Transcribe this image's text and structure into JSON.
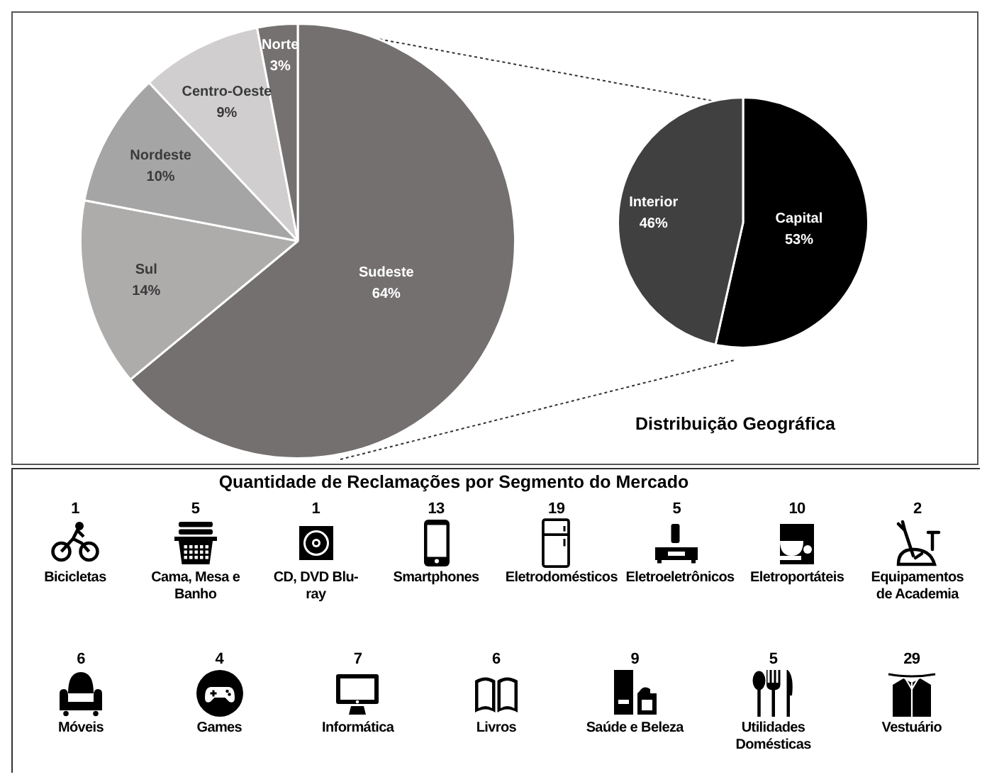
{
  "chart_data": [
    {
      "type": "pie",
      "categories": [
        "Sudeste",
        "Sul",
        "Nordeste",
        "Centro-Oeste",
        "Norte"
      ],
      "values": [
        64,
        14,
        10,
        9,
        3
      ],
      "colors": [
        "#747070",
        "#aeabab",
        "#a5a5a5",
        "#d0cece",
        "#767171"
      ],
      "value_labels": [
        "64%",
        "14%",
        "10%",
        "9%",
        "3%"
      ]
    },
    {
      "type": "pie",
      "title": "Distribuição Geográfica",
      "categories": [
        "Capital",
        "Interior"
      ],
      "values": [
        53,
        46
      ],
      "colors": [
        "#000000",
        "#404040"
      ],
      "value_labels": [
        "53%",
        "46%"
      ]
    },
    {
      "type": "other",
      "title": "Quantidade de Reclamações por Segmento do Mercado",
      "categories": [
        "Bicicletas",
        "Cama, Mesa e Banho",
        "CD, DVD Blu-ray",
        "Smartphones",
        "Eletrodomésticos",
        "Eletroeletrônicos",
        "Eletroportáteis",
        "Equipamentos de Academia",
        "Móveis",
        "Games",
        "Informática",
        "Livros",
        "Saúde e Beleza",
        "Utilidades Domésticas",
        "Vestuário"
      ],
      "values": [
        1,
        5,
        1,
        13,
        19,
        5,
        10,
        2,
        6,
        4,
        7,
        6,
        9,
        5,
        29
      ],
      "data_labels": true
    }
  ]
}
